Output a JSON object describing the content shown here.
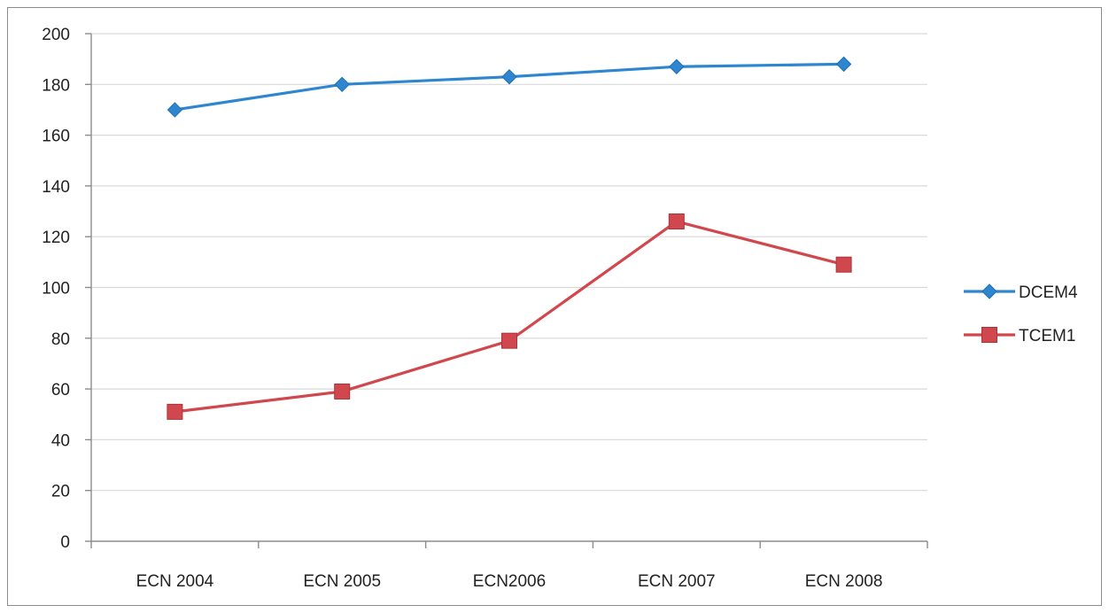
{
  "chart_data": {
    "type": "line",
    "categories": [
      "ECN 2004",
      "ECN 2005",
      "ECN2006",
      "ECN 2007",
      "ECN 2008"
    ],
    "series": [
      {
        "name": "DCEM4",
        "values": [
          170,
          180,
          183,
          187,
          188
        ],
        "color": "#2e86d0",
        "marker": "diamond"
      },
      {
        "name": "TCEM1",
        "values": [
          51,
          59,
          79,
          126,
          109
        ],
        "color": "#d0484e",
        "marker": "square"
      }
    ],
    "yticks": [
      "0",
      "20",
      "40",
      "60",
      "80",
      "100",
      "120",
      "140",
      "160",
      "180",
      "200"
    ],
    "ylim": [
      0,
      200
    ],
    "grid": true,
    "legend": "right"
  }
}
